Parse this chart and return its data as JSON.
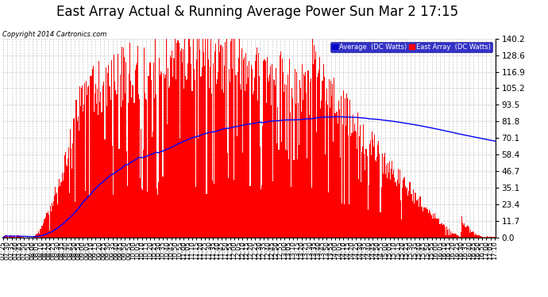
{
  "title": "East Array Actual & Running Average Power Sun Mar 2 17:15",
  "copyright": "Copyright 2014 Cartronics.com",
  "legend_avg": "Average  (DC Watts)",
  "legend_east": "East Array  (DC Watts)",
  "ymin": 0.0,
  "ymax": 140.2,
  "yticks": [
    0.0,
    11.7,
    23.4,
    35.1,
    46.7,
    58.4,
    70.1,
    81.8,
    93.5,
    105.2,
    116.9,
    128.6,
    140.2
  ],
  "bar_color": "#FF0000",
  "avg_line_color": "#0000FF",
  "background_color": "#FFFFFF",
  "plot_bg_color": "#FFFFFF",
  "grid_color": "#BBBBBB",
  "title_fontsize": 12,
  "copyright_fontsize": 6,
  "tick_fontsize": 6
}
